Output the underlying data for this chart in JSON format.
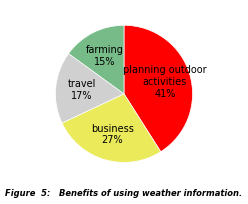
{
  "labels": [
    "planning outdoor\nactivities\n41%",
    "business\n27%",
    "travel\n17%",
    "farming\n15%"
  ],
  "sizes": [
    41,
    27,
    17,
    15
  ],
  "colors": [
    "#ff0000",
    "#eaea5a",
    "#d0d0d0",
    "#77bb88"
  ],
  "startangle": 90,
  "title": "Figure  5:   Benefits of using weather information.",
  "title_fontsize": 6.0,
  "label_fontsize": 7.0,
  "background_color": "#ffffff"
}
